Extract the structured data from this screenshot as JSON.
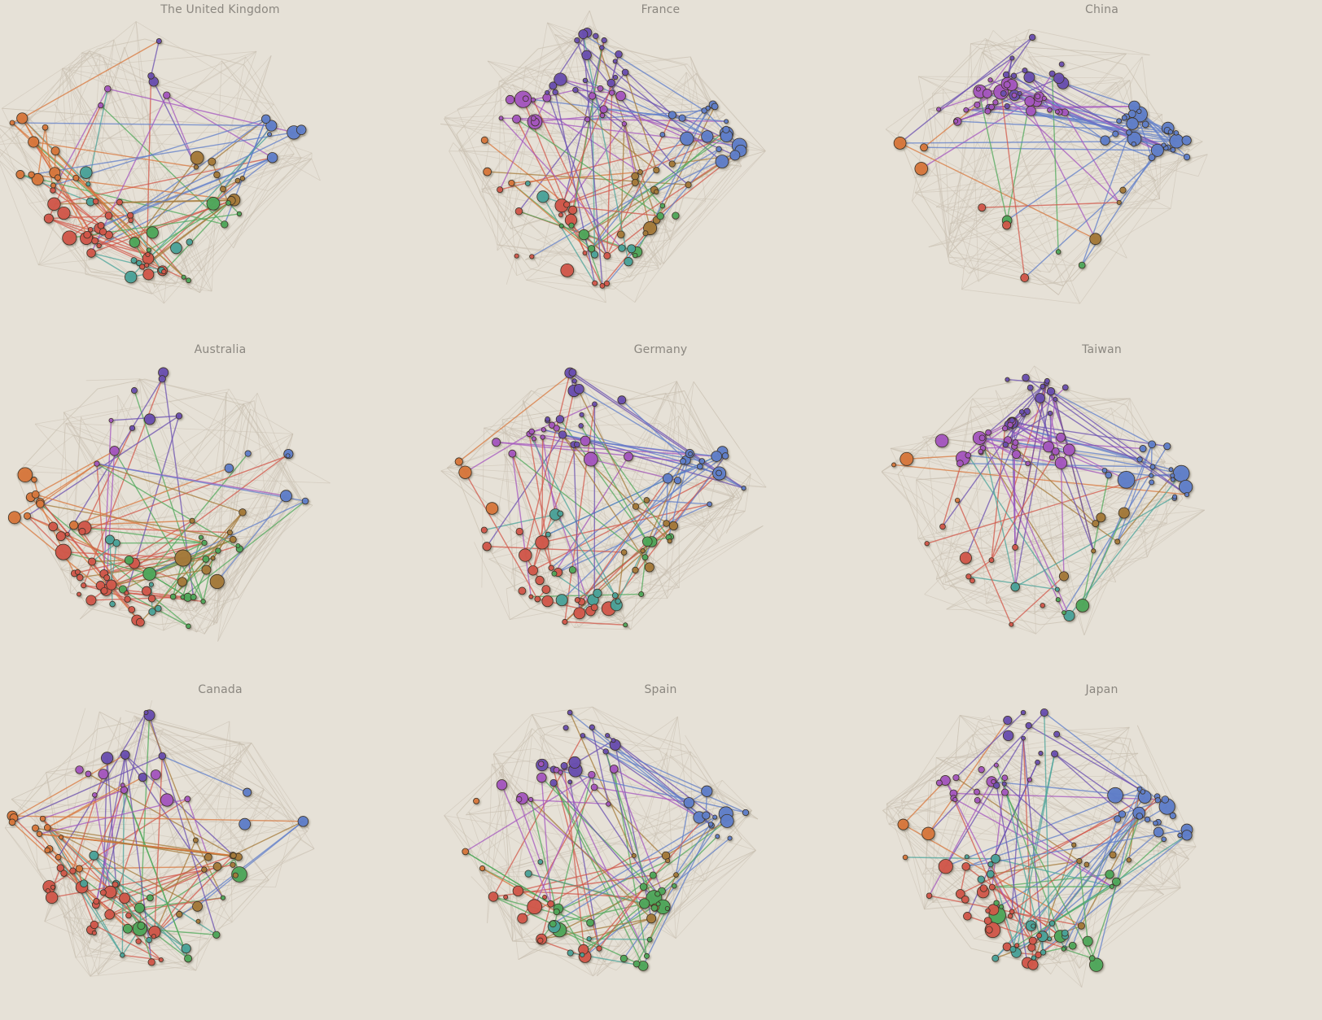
{
  "panels": [
    {
      "title": "The United Kingdom",
      "seed": 11,
      "weights": {
        "purple": 1,
        "violet": 1,
        "blue": 2,
        "orange": 4,
        "red": 9,
        "brown": 3,
        "teal": 3,
        "green": 3
      }
    },
    {
      "title": "France",
      "seed": 23,
      "weights": {
        "purple": 6,
        "violet": 6,
        "blue": 6,
        "orange": 1,
        "red": 5,
        "brown": 4,
        "teal": 2,
        "green": 3
      }
    },
    {
      "title": "China",
      "seed": 37,
      "weights": {
        "purple": 5,
        "violet": 9,
        "blue": 9,
        "orange": 1,
        "red": 1,
        "brown": 1,
        "teal": 0,
        "green": 1
      }
    },
    {
      "title": "Australia",
      "seed": 41,
      "weights": {
        "purple": 2,
        "violet": 1,
        "blue": 2,
        "orange": 3,
        "red": 9,
        "brown": 3,
        "teal": 2,
        "green": 5
      }
    },
    {
      "title": "Germany",
      "seed": 53,
      "weights": {
        "purple": 5,
        "violet": 4,
        "blue": 5,
        "orange": 1,
        "red": 7,
        "brown": 3,
        "teal": 3,
        "green": 3
      }
    },
    {
      "title": "Taiwan",
      "seed": 67,
      "weights": {
        "purple": 6,
        "violet": 8,
        "blue": 6,
        "orange": 1,
        "red": 3,
        "brown": 2,
        "teal": 1,
        "green": 1
      }
    },
    {
      "title": "Canada",
      "seed": 71,
      "weights": {
        "purple": 2,
        "violet": 3,
        "blue": 1,
        "orange": 4,
        "red": 8,
        "brown": 4,
        "teal": 2,
        "green": 3
      }
    },
    {
      "title": "Spain",
      "seed": 83,
      "weights": {
        "purple": 5,
        "violet": 4,
        "blue": 4,
        "orange": 1,
        "red": 4,
        "brown": 2,
        "teal": 2,
        "green": 7
      }
    },
    {
      "title": "Japan",
      "seed": 97,
      "weights": {
        "purple": 4,
        "violet": 5,
        "blue": 7,
        "orange": 1,
        "red": 8,
        "brown": 2,
        "teal": 6,
        "green": 4
      }
    }
  ],
  "colors": {
    "background": "#e6e1d7",
    "faint": "#c9c0b0",
    "title": "#8b8780",
    "purple": "#6a4fb0",
    "violet": "#a456bf",
    "blue": "#5f7ec9",
    "orange": "#d8773c",
    "red": "#d2574a",
    "brown": "#a47a3a",
    "teal": "#4aa39a",
    "green": "#4fa85a"
  }
}
